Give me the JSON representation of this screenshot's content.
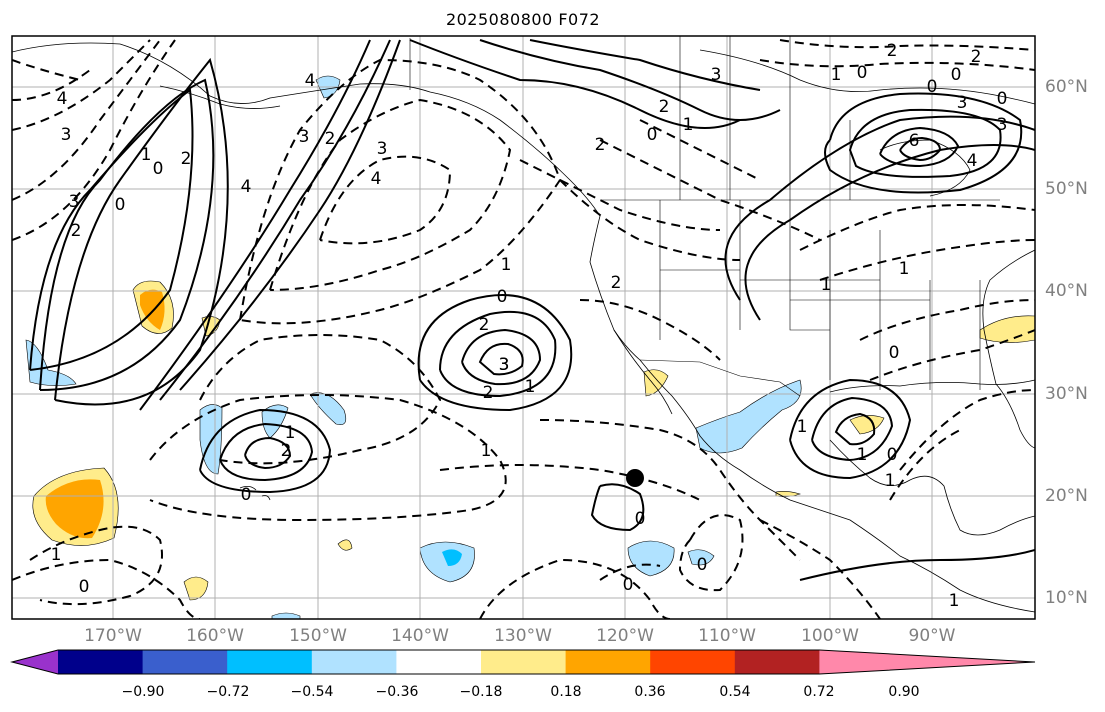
{
  "title": "2025080800 F072",
  "lon_labels": [
    "170°W",
    "160°W",
    "150°W",
    "140°W",
    "130°W",
    "120°W",
    "110°W",
    "100°W",
    "90°W"
  ],
  "lat_labels": [
    "60°N",
    "50°N",
    "40°N",
    "30°N",
    "20°N",
    "10°N"
  ],
  "colorbar": {
    "ticks": [
      "−0.90",
      "−0.72",
      "−0.54",
      "−0.36",
      "−0.18",
      "0.18",
      "0.36",
      "0.54",
      "0.72",
      "0.90"
    ],
    "colors": [
      "#9932CC",
      "#00008B",
      "#3A5FCD",
      "#00BFFF",
      "#B0E2FF",
      "#FFFFFF",
      "#FFEC8B",
      "#FFA500",
      "#FF4500",
      "#B22222",
      "#FF88AA"
    ]
  },
  "contour_labels": [
    "4",
    "3",
    "3",
    "2",
    "0",
    "1",
    "2",
    "0",
    "4",
    "4",
    "3",
    "2",
    "2",
    "3",
    "4",
    "3",
    "2",
    "1",
    "0",
    "2",
    "3",
    "1",
    "0",
    "1",
    "1",
    "2",
    "3",
    "2",
    "0",
    "1",
    "1",
    "0",
    "2",
    "0",
    "2",
    "0",
    "3",
    "0",
    "3",
    "6",
    "4",
    "1",
    "1",
    "0",
    "1",
    "1",
    "0",
    "1",
    "0",
    "0",
    "0",
    "1",
    "0",
    "2",
    "1"
  ],
  "marker": "station-dot"
}
